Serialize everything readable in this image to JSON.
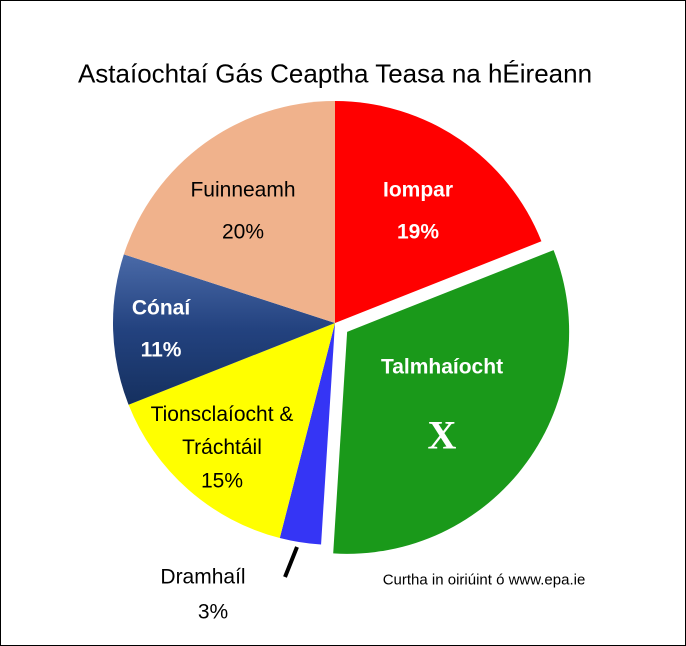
{
  "chart_data": {
    "type": "pie",
    "title": "Astaíochtaí Gás Ceaptha Teasa na hÉireann",
    "categories": [
      "Iompar",
      "Talmhaíocht",
      "Dramhaíl",
      "Tionsclaíocht & Tráchtáil",
      "Cónaí",
      "Fuinneamh"
    ],
    "values": [
      19,
      32,
      3,
      15,
      11,
      20
    ],
    "value_labels": [
      "19%",
      "X",
      "3%",
      "15%",
      "11%",
      "20%"
    ],
    "colors": [
      "#ff0000",
      "#1a991a",
      "#3535f5",
      "#ffff00",
      "#23427f",
      "#f0b28c"
    ],
    "annotations": [
      "Curtha in oiriúint ó www.epa.ie"
    ]
  }
}
